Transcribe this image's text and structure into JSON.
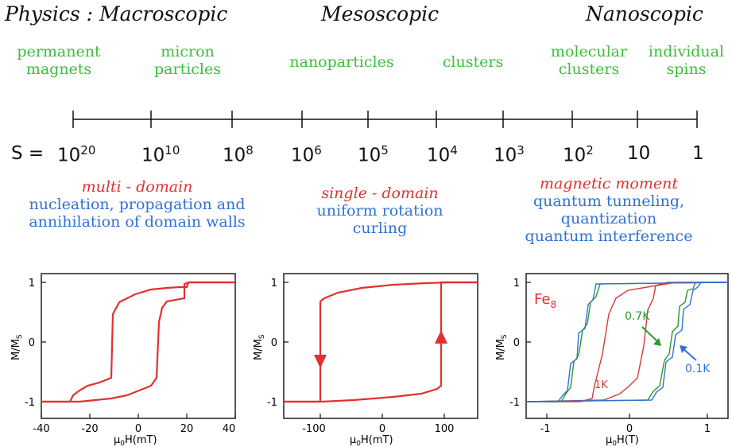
{
  "header": {
    "physics_macro": "Physics : Macroscopic",
    "meso": "Mesoscopic",
    "nano": "Nanoscopic"
  },
  "categories": [
    {
      "line1": "permanent",
      "line2": "magnets"
    },
    {
      "line1": "micron",
      "line2": "particles"
    },
    {
      "line1": "nanoparticles",
      "line2": ""
    },
    {
      "line1": "clusters",
      "line2": ""
    },
    {
      "line1": "molecular",
      "line2": "clusters"
    },
    {
      "line1": "individual",
      "line2": "spins"
    }
  ],
  "scale": {
    "prefix": "S =",
    "ticks": [
      {
        "base": "10",
        "exp": "20"
      },
      {
        "base": "10",
        "exp": "10"
      },
      {
        "base": "10",
        "exp": "8"
      },
      {
        "base": "10",
        "exp": "6"
      },
      {
        "base": "10",
        "exp": "5"
      },
      {
        "base": "10",
        "exp": "4"
      },
      {
        "base": "10",
        "exp": "3"
      },
      {
        "base": "10",
        "exp": "2"
      },
      {
        "base": "10",
        "exp": ""
      },
      {
        "base": "1",
        "exp": ""
      }
    ]
  },
  "regimes": [
    {
      "title": "multi - domain",
      "lines": [
        "nucleation, propagation and",
        "annihilation of domain walls"
      ]
    },
    {
      "title": "single - domain",
      "lines": [
        "uniform rotation",
        "curling"
      ]
    },
    {
      "title": "magnetic moment",
      "lines": [
        "quantum tunneling,",
        "quantization",
        "quantum interference"
      ]
    }
  ],
  "plots": {
    "ylabel": "M/M",
    "ylabel_sub": "S",
    "y_ticks": [
      "1",
      "0",
      "-1"
    ],
    "xlabel_mu": "μ",
    "xlabel_sub": "0",
    "plot1": {
      "xlabel_rest": "H(mT)",
      "x_ticks": [
        "-40",
        "-20",
        "0",
        "20",
        "40"
      ]
    },
    "plot2": {
      "xlabel_rest": "H(mT)",
      "x_ticks": [
        "-100",
        "0",
        "100"
      ]
    },
    "plot3": {
      "xlabel_rest": "H(T)",
      "x_ticks": [
        "-1",
        "0",
        "1"
      ],
      "fe_label": "Fe",
      "fe_sub": "8",
      "label_07": "0.7K",
      "label_1": "1K",
      "label_01": "0.1K"
    }
  },
  "colors": {
    "red": "#e23030",
    "green": "#2a9a2a",
    "blue": "#2f72d8",
    "cat_green": "#3bbf3b"
  }
}
